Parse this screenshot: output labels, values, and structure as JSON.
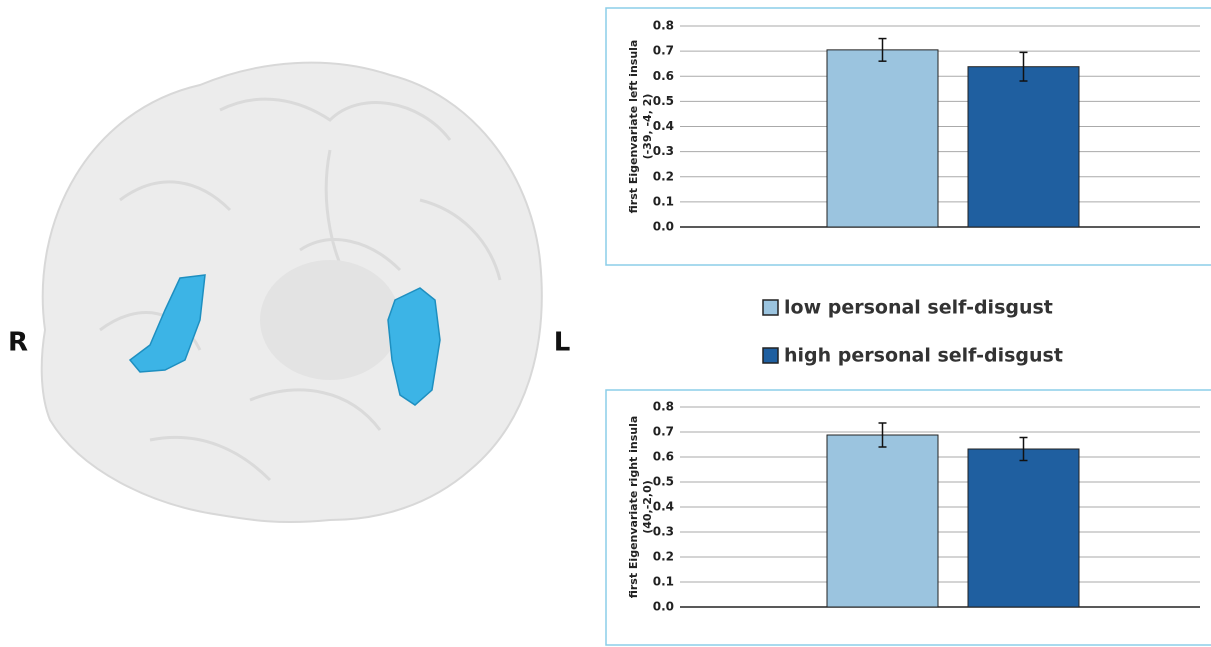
{
  "image": {
    "labels": [
      "R",
      "L"
    ]
  },
  "chart_data": [
    {
      "type": "bar",
      "ylabel": [
        "first Eigenvariate left insula",
        "(-39, -4, 2)"
      ],
      "categories": [
        null
      ],
      "series": [
        {
          "name": "low personal self-disgust",
          "color": "#9bc4df",
          "values": [
            0.705
          ],
          "errors": [
            0.045
          ]
        },
        {
          "name": "high personal self-disgust",
          "color": "#1f5fa0",
          "values": [
            0.638
          ],
          "errors": [
            0.057
          ]
        }
      ],
      "ylim": [
        0,
        0.8
      ],
      "yticks": [
        {
          "value": 0,
          "label": "0.0"
        },
        0.1,
        0.2,
        0.3,
        0.4,
        0.5,
        0.6,
        0.7,
        0.8
      ],
      "grid": true
    },
    {
      "type": "bar",
      "ylabel": [
        "first Eigenvariate right insula",
        "(40,-2,0)"
      ],
      "categories": [
        null
      ],
      "series": [
        {
          "color": "#9bc4df",
          "values": [
            0.688
          ],
          "errors": [
            0.048
          ]
        },
        {
          "color": "#1f5fa0",
          "values": [
            0.632
          ],
          "errors": [
            0.046
          ]
        }
      ],
      "ylim": [
        0,
        0.8
      ],
      "yticks": [
        {
          "value": 0,
          "label": "0.0"
        },
        0.1,
        0.2,
        0.3,
        0.4,
        0.5,
        0.6,
        0.7,
        0.8
      ],
      "grid": true
    }
  ]
}
